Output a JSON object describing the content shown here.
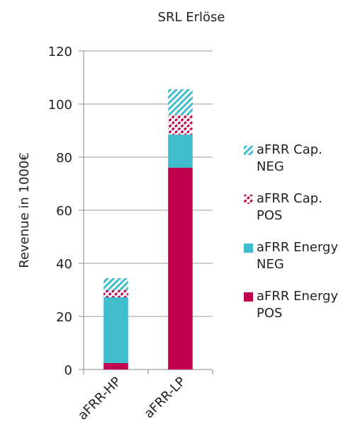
{
  "chart_data": {
    "type": "stacked_bar",
    "title": "SRL Erlöse",
    "y_label": "Revenue in 1000€",
    "categories": [
      "aFRR-HP",
      "aFRR-LP"
    ],
    "series": [
      {
        "name": "aFRR Energy POS",
        "color": "#c0004e",
        "hatch": false,
        "values": [
          2.4,
          76
        ]
      },
      {
        "name": "aFRR Energy NEG",
        "color": "#40bccc",
        "hatch": false,
        "values": [
          24.8,
          12.5
        ]
      },
      {
        "name": "aFRR Cap. POS",
        "color": "#c0004e",
        "hatch": true,
        "values": [
          2.7,
          7.5
        ]
      },
      {
        "name": "aFRR Cap. NEG",
        "color": "#40bccc",
        "hatch": true,
        "values": [
          4.5,
          9.6
        ]
      }
    ],
    "ylim": [
      0,
      120
    ],
    "yticks": [
      0,
      20,
      40,
      60,
      80,
      100,
      120
    ],
    "grid": true
  }
}
